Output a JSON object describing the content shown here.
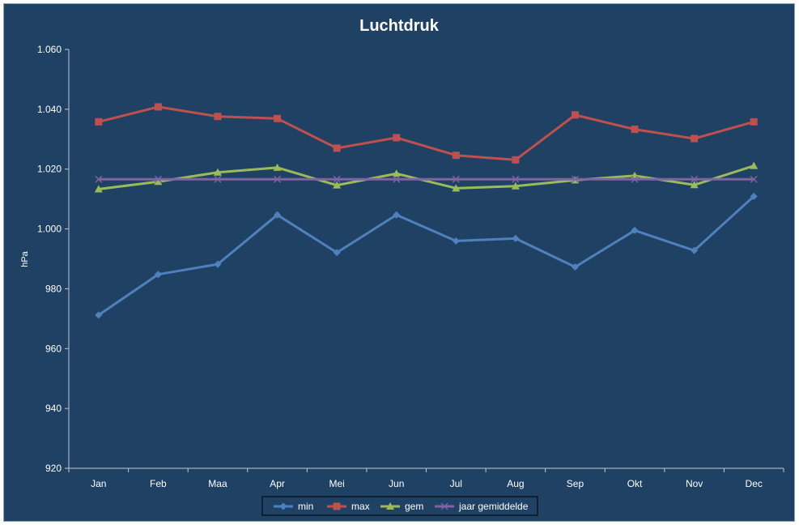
{
  "chart_data": {
    "type": "line",
    "title": "Luchtdruk",
    "xlabel": "",
    "ylabel": "hPa",
    "ylim": [
      920,
      1060
    ],
    "yticks": [
      920,
      940,
      960,
      980,
      1000,
      1020,
      1040,
      1060
    ],
    "ytick_labels": [
      "920",
      "940",
      "960",
      "980",
      "1.000",
      "1.020",
      "1.040",
      "1.060"
    ],
    "categories": [
      "Jan",
      "Feb",
      "Maa",
      "Apr",
      "Mei",
      "Jun",
      "Jul",
      "Aug",
      "Sep",
      "Okt",
      "Nov",
      "Dec"
    ],
    "grid": false,
    "legend_position": "bottom",
    "series": [
      {
        "name": "min",
        "color": "#4f81bd",
        "marker": "diamond",
        "values": [
          971.2,
          984.8,
          988.2,
          1004.7,
          992.1,
          1004.7,
          996.0,
          996.8,
          987.3,
          999.5,
          992.8,
          1010.9
        ]
      },
      {
        "name": "max",
        "color": "#c0504d",
        "marker": "square",
        "values": [
          1035.8,
          1040.8,
          1037.6,
          1036.9,
          1027.0,
          1030.5,
          1024.6,
          1023.1,
          1038.1,
          1033.3,
          1030.2,
          1035.8
        ]
      },
      {
        "name": "gem",
        "color": "#9bbb59",
        "marker": "triangle",
        "values": [
          1013.3,
          1015.8,
          1018.9,
          1020.5,
          1014.6,
          1018.5,
          1013.6,
          1014.3,
          1016.3,
          1017.8,
          1014.7,
          1021.1
        ]
      },
      {
        "name": "jaar gemiddelde",
        "color": "#8064a2",
        "marker": "x",
        "values": [
          1016.6,
          1016.6,
          1016.6,
          1016.6,
          1016.6,
          1016.6,
          1016.6,
          1016.6,
          1016.6,
          1016.6,
          1016.6,
          1016.6
        ]
      }
    ]
  },
  "colors": {
    "background": "#1f4164",
    "axis": "#c0c8d4",
    "text": "#ffffff"
  }
}
